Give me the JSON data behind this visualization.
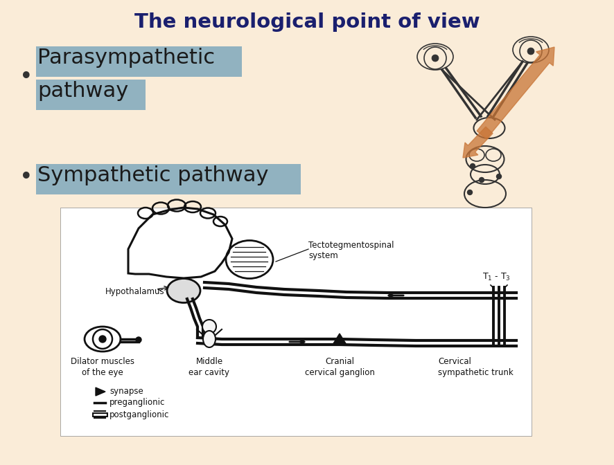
{
  "background_color": "#faecd8",
  "title": "The neurological point of view",
  "title_fontsize": 21,
  "title_color": "#1a1f6e",
  "bullet1_line1": "Parasympathetic",
  "bullet1_line2": "pathway",
  "bullet2": "Sympathetic pathway",
  "bullet_fontsize": 22,
  "bullet_highlight_color": "#7fa8bc",
  "bullet_text_color": "#1a1a1a",
  "bottom_panel_bg": "#ffffff",
  "top_left_panel_bg": "#faecd8",
  "arrow_color": "#c87537"
}
